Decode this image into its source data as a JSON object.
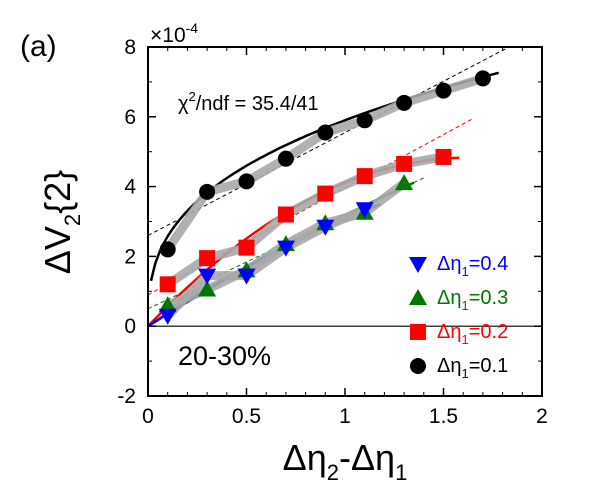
{
  "chart_data": {
    "type": "scatter",
    "panel_label": "(a)",
    "scale_label": "×10",
    "scale_exponent": "-4",
    "centrality": "20-30%",
    "chi2_label": "χ",
    "chi2_sup": "2",
    "chi2_rest": "/ndf = 35.4/41",
    "xlabel": "Δη₂-Δη₁",
    "xlabel_parts": {
      "base": "Δη",
      "sub1": "2",
      "mid": "-Δη",
      "sub2": "1"
    },
    "ylabel_parts": {
      "base": "ΔV",
      "sub": "2",
      "rest": "{2}"
    },
    "xlim": [
      0,
      2
    ],
    "ylim": [
      -2,
      8
    ],
    "x_ticks": [
      0,
      0.5,
      1,
      1.5,
      2
    ],
    "x_tick_labels": [
      "0",
      "0.5",
      "1",
      "1.5",
      "2"
    ],
    "y_ticks": [
      -2,
      0,
      2,
      4,
      6,
      8
    ],
    "y_tick_labels": [
      "-2",
      "0",
      "2",
      "4",
      "6",
      "8"
    ],
    "series": [
      {
        "name": "Δη1=0.1",
        "label_prefix": "Δη",
        "label_sub": "1",
        "label_suffix": "=0.1",
        "marker": "circle",
        "color": "#000000",
        "x": [
          0.1,
          0.3,
          0.5,
          0.7,
          0.9,
          1.1,
          1.3,
          1.5,
          1.7
        ],
        "y": [
          2.2,
          3.85,
          4.15,
          4.8,
          5.55,
          5.9,
          6.4,
          6.75,
          7.1
        ],
        "fit": {
          "type": "power",
          "x0": 0.015,
          "x1": 1.78
        },
        "linear_fit": {
          "x": [
            0,
            1.85
          ],
          "y": [
            2.6,
            8.05
          ]
        }
      },
      {
        "name": "Δη1=0.2",
        "label_prefix": "Δη",
        "label_sub": "1",
        "label_suffix": "=0.2",
        "marker": "square",
        "color": "#ff0000",
        "x": [
          0.1,
          0.3,
          0.5,
          0.7,
          0.9,
          1.1,
          1.3,
          1.5
        ],
        "y": [
          1.2,
          1.95,
          2.25,
          3.2,
          3.8,
          4.3,
          4.65,
          4.85
        ],
        "fit": {
          "type": "curve",
          "x0": 0.0,
          "x1": 1.58
        },
        "linear_fit": {
          "x": [
            0,
            1.65
          ],
          "y": [
            0.9,
            5.95
          ]
        }
      },
      {
        "name": "Δη1=0.3",
        "label_prefix": "Δη",
        "label_sub": "1",
        "label_suffix": "=0.3",
        "marker": "triangle-up",
        "color": "#007700",
        "x": [
          0.1,
          0.3,
          0.5,
          0.7,
          0.9,
          1.1,
          1.3
        ],
        "y": [
          0.6,
          1.05,
          1.6,
          2.35,
          2.95,
          3.25,
          4.1
        ],
        "fit": {
          "type": "curve",
          "x0": 0.0,
          "x1": 1.35
        },
        "linear_fit": {
          "x": [
            0,
            1.4
          ],
          "y": [
            0.5,
            4.25
          ]
        }
      },
      {
        "name": "Δη1=0.4",
        "label_prefix": "Δη",
        "label_sub": "1",
        "label_suffix": "=0.4",
        "marker": "triangle-down",
        "color": "#0000ff",
        "x": [
          0.1,
          0.3,
          0.5,
          0.7,
          0.9,
          1.1
        ],
        "y": [
          0.3,
          1.45,
          1.45,
          2.25,
          2.85,
          3.35
        ],
        "fit": {
          "type": "curve",
          "x0": 0.0,
          "x1": 1.18
        },
        "linear_fit": null
      }
    ]
  }
}
